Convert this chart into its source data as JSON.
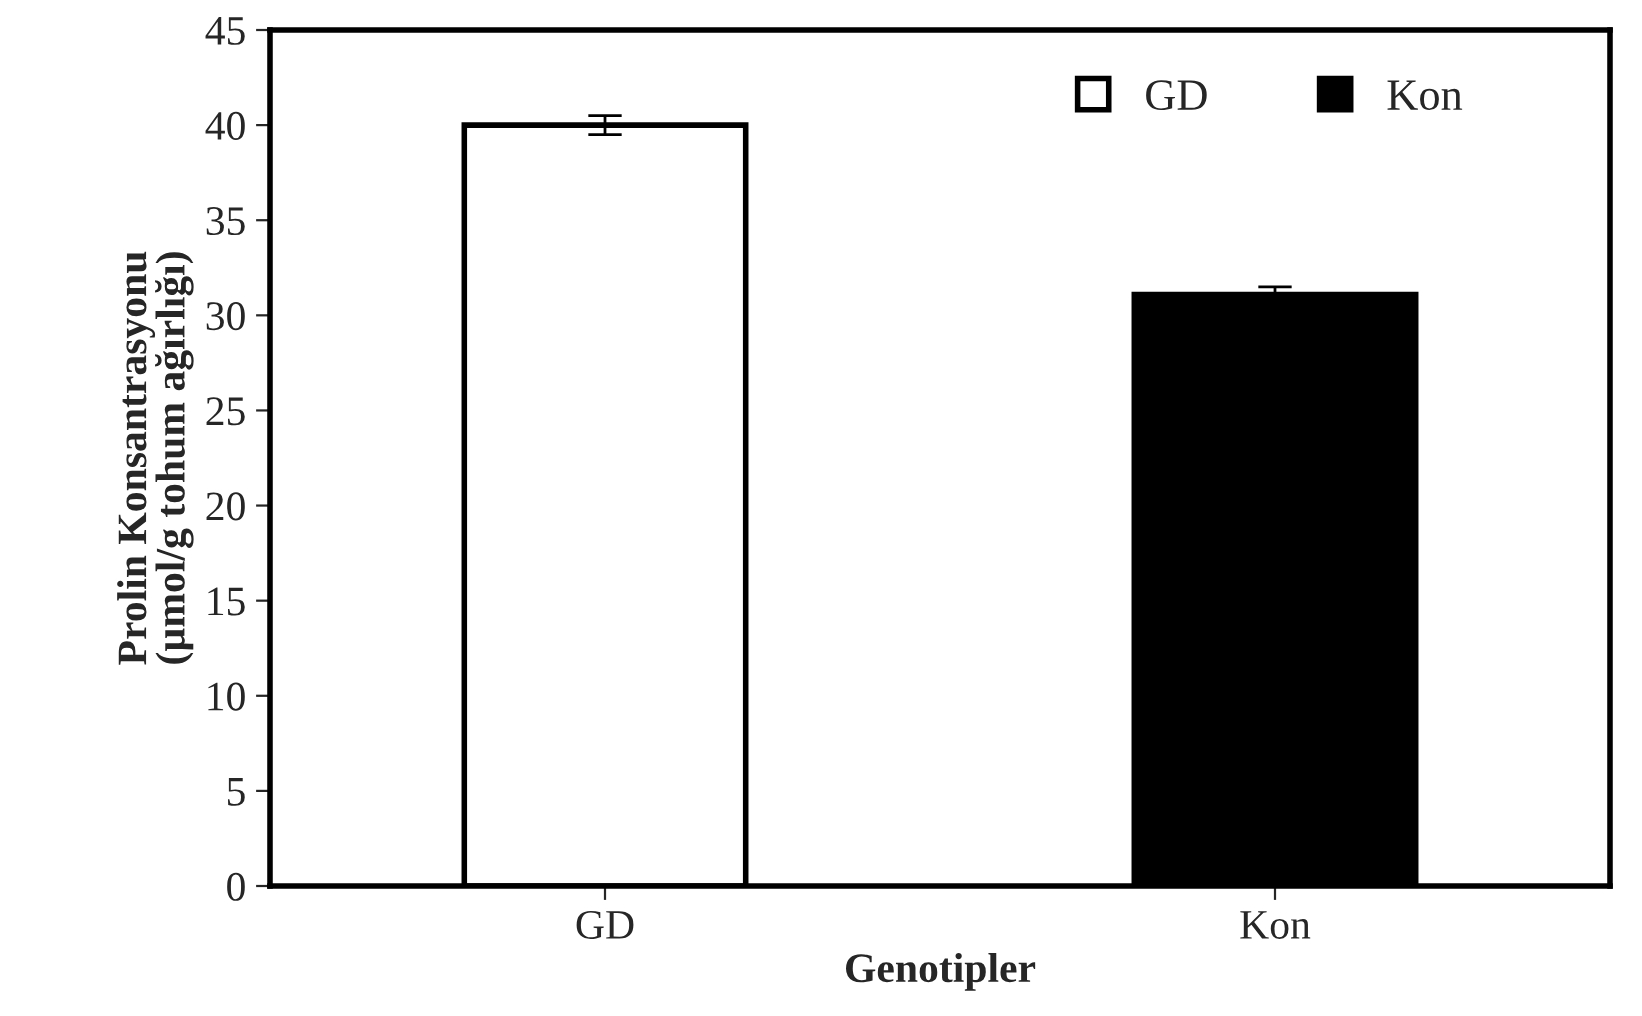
{
  "chart_data": {
    "type": "bar",
    "xlabel": "Genotipler",
    "ylabel": "Prolin Konsantrasyonu\n(µmol/g tohum ağırlığı)",
    "categories": [
      "GD",
      "Kon"
    ],
    "series": [
      {
        "name": "GD",
        "color": "#ffffff",
        "values": [
          40,
          null
        ],
        "errors": [
          0.5,
          null
        ]
      },
      {
        "name": "Kon",
        "color": "#000000",
        "values": [
          null,
          31.1
        ],
        "errors": [
          null,
          0.4
        ]
      }
    ],
    "ylim": [
      0,
      45
    ],
    "yticks": [
      0,
      5,
      10,
      15,
      20,
      25,
      30,
      35,
      40,
      45
    ],
    "grid": false,
    "legend": "top right"
  }
}
